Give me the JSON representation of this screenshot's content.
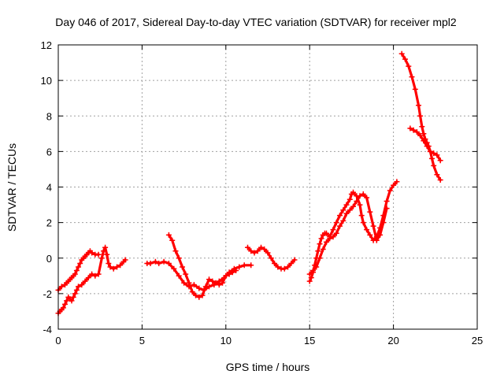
{
  "chart_data": {
    "type": "scatter",
    "title": "Day 046 of 2017, Sidereal Day-to-day VTEC variation (SDTVAR) for receiver mpl2",
    "xlabel": "GPS time / hours",
    "ylabel": "SDTVAR / TECUs",
    "xlim": [
      0,
      25
    ],
    "ylim": [
      -4,
      12
    ],
    "xticks": [
      "0",
      "5",
      "10",
      "15",
      "20",
      "25"
    ],
    "yticks": [
      "-4",
      "-2",
      "0",
      "2",
      "4",
      "6",
      "8",
      "10",
      "12"
    ],
    "grid": true,
    "legend": "none",
    "marker": "plus",
    "color": "#ff0000",
    "series": [
      {
        "x": [
          0.0,
          0.2,
          0.4,
          0.5,
          0.6,
          0.7,
          0.8,
          0.9,
          1.0,
          1.1,
          1.2,
          1.3,
          1.4,
          1.5,
          1.6,
          1.7,
          1.8,
          1.9,
          2.0,
          2.2,
          2.4
        ],
        "y": [
          -1.8,
          -1.6,
          -1.5,
          -1.4,
          -1.3,
          -1.2,
          -1.1,
          -1.0,
          -0.9,
          -0.7,
          -0.5,
          -0.3,
          -0.1,
          0.0,
          0.1,
          0.2,
          0.3,
          0.4,
          0.3,
          0.2,
          0.2
        ]
      },
      {
        "x": [
          0.0,
          0.1,
          0.2,
          0.3,
          0.4,
          0.5,
          0.6,
          0.7,
          0.8,
          0.9,
          1.0,
          1.1,
          1.2,
          1.4,
          1.6,
          1.8,
          2.0,
          2.2,
          2.4,
          2.6,
          2.7,
          2.8,
          2.9,
          3.0,
          3.1,
          3.3,
          3.5,
          3.7,
          3.9,
          4.0
        ],
        "y": [
          -3.1,
          -3.0,
          -2.9,
          -2.8,
          -2.6,
          -2.4,
          -2.2,
          -2.3,
          -2.4,
          -2.2,
          -2.0,
          -1.8,
          -1.6,
          -1.5,
          -1.3,
          -1.1,
          -0.9,
          -1.0,
          -0.9,
          0.0,
          0.4,
          0.6,
          0.2,
          -0.3,
          -0.5,
          -0.6,
          -0.5,
          -0.4,
          -0.2,
          -0.1
        ]
      },
      {
        "x": [
          5.3,
          5.5,
          5.8,
          6.0,
          6.3,
          6.6,
          6.9,
          7.2,
          7.5,
          7.8,
          8.1,
          8.4,
          8.7,
          9.0,
          9.3,
          9.6,
          9.9,
          10.2,
          10.5,
          10.8,
          11.1,
          11.5
        ],
        "y": [
          -0.3,
          -0.3,
          -0.2,
          -0.3,
          -0.2,
          -0.3,
          -0.6,
          -1.0,
          -1.4,
          -1.6,
          -1.5,
          -1.7,
          -1.8,
          -1.6,
          -1.5,
          -1.3,
          -1.1,
          -0.8,
          -0.6,
          -0.5,
          -0.4,
          -0.4
        ]
      },
      {
        "x": [
          6.6,
          6.8,
          7.0,
          7.2,
          7.4,
          7.6,
          7.8,
          8.0,
          8.2,
          8.4,
          8.6,
          8.8,
          9.0,
          9.2,
          9.4,
          9.6,
          9.8,
          10.0,
          10.2,
          10.4,
          10.6
        ],
        "y": [
          1.3,
          1.0,
          0.4,
          0.0,
          -0.5,
          -0.9,
          -1.4,
          -1.9,
          -2.1,
          -2.2,
          -2.1,
          -1.6,
          -1.2,
          -1.3,
          -1.4,
          -1.5,
          -1.4,
          -1.0,
          -0.9,
          -0.8,
          -0.7
        ]
      },
      {
        "x": [
          11.3,
          11.5,
          11.7,
          11.9,
          12.1,
          12.3,
          12.5,
          12.7,
          12.9,
          13.1,
          13.3,
          13.5,
          13.7,
          13.9,
          14.1
        ],
        "y": [
          0.6,
          0.4,
          0.3,
          0.4,
          0.6,
          0.5,
          0.3,
          0.0,
          -0.3,
          -0.5,
          -0.6,
          -0.6,
          -0.5,
          -0.3,
          -0.1
        ]
      },
      {
        "x": [
          15.0,
          15.1,
          15.2,
          15.3,
          15.4,
          15.5,
          15.6,
          15.7,
          15.8,
          15.9,
          16.0,
          16.2,
          16.4,
          16.6,
          16.8,
          17.0,
          17.2,
          17.4,
          17.5,
          17.6,
          17.8,
          18.0,
          18.1,
          18.2,
          18.4,
          18.6,
          18.8,
          19.0,
          19.2,
          19.4,
          19.6,
          19.8,
          20.0,
          20.2
        ],
        "y": [
          -1.3,
          -1.1,
          -0.8,
          -0.4,
          0.0,
          0.4,
          0.8,
          1.1,
          1.3,
          1.4,
          1.4,
          1.2,
          1.6,
          2.0,
          2.4,
          2.7,
          3.0,
          3.3,
          3.6,
          3.7,
          3.5,
          3.0,
          2.4,
          2.0,
          1.6,
          1.3,
          1.0,
          1.2,
          1.7,
          2.4,
          3.2,
          3.8,
          4.1,
          4.3
        ]
      },
      {
        "x": [
          15.0,
          15.2,
          15.4,
          15.6,
          15.8,
          16.0,
          16.2,
          16.4,
          16.6,
          16.8,
          17.0,
          17.2,
          17.4,
          17.6,
          17.8,
          18.0,
          18.2,
          18.4,
          18.6,
          18.8,
          19.0,
          19.2,
          19.4,
          19.6
        ],
        "y": [
          -0.9,
          -0.7,
          -0.5,
          0.0,
          0.5,
          0.9,
          1.1,
          1.2,
          1.4,
          1.8,
          2.1,
          2.5,
          2.7,
          2.9,
          3.2,
          3.5,
          3.6,
          3.4,
          2.6,
          1.8,
          1.0,
          1.3,
          2.0,
          2.8
        ]
      },
      {
        "x": [
          20.5,
          20.7,
          20.9,
          21.1,
          21.3,
          21.5,
          21.6,
          21.7,
          21.8,
          21.9,
          22.0,
          22.1,
          22.2,
          22.3,
          22.4,
          22.6,
          22.8
        ],
        "y": [
          11.5,
          11.2,
          10.8,
          10.2,
          9.5,
          8.6,
          8.0,
          7.4,
          7.0,
          6.7,
          6.5,
          6.3,
          6.0,
          5.6,
          5.2,
          4.7,
          4.4
        ]
      },
      {
        "x": [
          21.0,
          21.2,
          21.4,
          21.6,
          21.8,
          22.0,
          22.2,
          22.4,
          22.6,
          22.8
        ],
        "y": [
          7.3,
          7.2,
          7.1,
          6.9,
          6.6,
          6.3,
          6.0,
          5.9,
          5.8,
          5.5
        ]
      }
    ]
  }
}
